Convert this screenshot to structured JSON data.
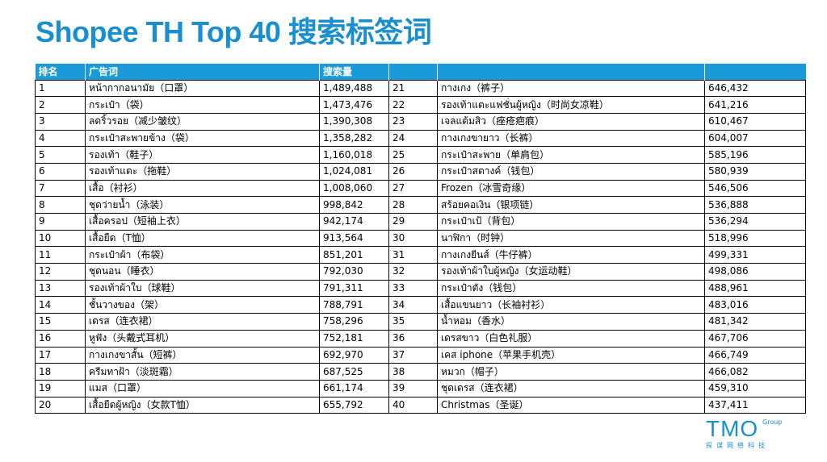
{
  "title": "Shopee TH Top 40 搜索标签词",
  "header": {
    "col_rank": "排名",
    "col_term": "广告词",
    "col_volume": "搜索量",
    "col_rank2": "",
    "col_term2": "",
    "col_volume2": ""
  },
  "rows": [
    {
      "rank": "1",
      "term": "หน้ากากอนามัย（口罩）",
      "volume": "1,489,488",
      "rank2": "21",
      "term2": "กางเกง（裤子）",
      "volume2": "646,432"
    },
    {
      "rank": "2",
      "term": "กระเป๋า（袋）",
      "volume": "1,473,476",
      "rank2": "22",
      "term2": "รองเท้าแตะแฟชั่นผู้หญิง（时尚女凉鞋）",
      "volume2": "641,216"
    },
    {
      "rank": "3",
      "term": "ลดริ้วรอย（减少皱纹）",
      "volume": "1,390,308",
      "rank2": "23",
      "term2": "เจลแต้มสิว（痤疮疤痕）",
      "volume2": "610,467"
    },
    {
      "rank": "4",
      "term": "กระเป๋าสะพายข้าง（袋）",
      "volume": "1,358,282",
      "rank2": "24",
      "term2": "กางเกงขายาว（长裤）",
      "volume2": "604,007"
    },
    {
      "rank": "5",
      "term": "รองเท้า（鞋子）",
      "volume": "1,160,018",
      "rank2": "25",
      "term2": "กระเป๋าสะพาย（单肩包）",
      "volume2": "585,196"
    },
    {
      "rank": "6",
      "term": "รองเท้าแตะ（拖鞋）",
      "volume": "1,024,081",
      "rank2": "26",
      "term2": "กระเป๋าสตางค์（钱包）",
      "volume2": "580,939"
    },
    {
      "rank": "7",
      "term": "เสื้อ（衬衫）",
      "volume": "1,008,060",
      "rank2": "27",
      "term2": "Frozen（冰雪奇缘）",
      "volume2": "546,506"
    },
    {
      "rank": "8",
      "term": "ชุดว่ายน้ำ（泳装）",
      "volume": "998,842",
      "rank2": "28",
      "term2": "สร้อยคอเงิน（银项链）",
      "volume2": "536,888"
    },
    {
      "rank": "9",
      "term": "เสื้อครอป（短袖上衣）",
      "volume": "942,174",
      "rank2": "29",
      "term2": "กระเป๋าเป้（背包）",
      "volume2": "536,294"
    },
    {
      "rank": "10",
      "term": "เสื้อยืด（T恤）",
      "volume": "913,564",
      "rank2": "30",
      "term2": "นาฬิกา（时钟）",
      "volume2": "518,996"
    },
    {
      "rank": "11",
      "term": "กระเป๋าผ้า（布袋）",
      "volume": "851,201",
      "rank2": "31",
      "term2": "กางเกงยีนส์（牛仔裤）",
      "volume2": "499,331"
    },
    {
      "rank": "12",
      "term": "ชุดนอน（睡衣）",
      "volume": "792,030",
      "rank2": "32",
      "term2": "รองเท้าผ้าใบผู้หญิง（女运动鞋）",
      "volume2": "498,086"
    },
    {
      "rank": "13",
      "term": "รองเท้าผ้าใบ（球鞋）",
      "volume": "791,311",
      "rank2": "33",
      "term2": "กระเป๋าตัง（钱包）",
      "volume2": "488,961"
    },
    {
      "rank": "14",
      "term": "ชั้นวางของ（架）",
      "volume": "788,791",
      "rank2": "34",
      "term2": "เสื้อแขนยาว（长袖衬衫）",
      "volume2": "483,016"
    },
    {
      "rank": "15",
      "term": "เดรส（连衣裙）",
      "volume": "758,296",
      "rank2": "35",
      "term2": "น้ำหอม（香水）",
      "volume2": "481,342"
    },
    {
      "rank": "16",
      "term": "หูฟัง（头戴式耳机）",
      "volume": "752,181",
      "rank2": "36",
      "term2": "เดรสขาว（白色礼服）",
      "volume2": "467,706"
    },
    {
      "rank": "17",
      "term": "กางเกงขาสั้น（短裤）",
      "volume": "692,970",
      "rank2": "37",
      "term2": "เคส iphone（苹果手机壳）",
      "volume2": "466,749"
    },
    {
      "rank": "18",
      "term": "ครีมทาฝ้า（淡斑霜）",
      "volume": "687,525",
      "rank2": "38",
      "term2": "หมวก（帽子）",
      "volume2": "466,082"
    },
    {
      "rank": "19",
      "term": "แมส（口罩）",
      "volume": "661,174",
      "rank2": "39",
      "term2": "ชุดเดรส（连衣裙）",
      "volume2": "459,310"
    },
    {
      "rank": "20",
      "term": "เสื้อยืดผู้หญิง（女款T恤）",
      "volume": "655,792",
      "rank2": "40",
      "term2": "Christmas（圣诞）",
      "volume2": "437,411"
    }
  ],
  "logo": {
    "mark": "TMO",
    "group": "Group",
    "subtitle": "探谋网络科技"
  },
  "colors": {
    "accent": "#1a9ad9",
    "title": "#1a8fd0"
  }
}
